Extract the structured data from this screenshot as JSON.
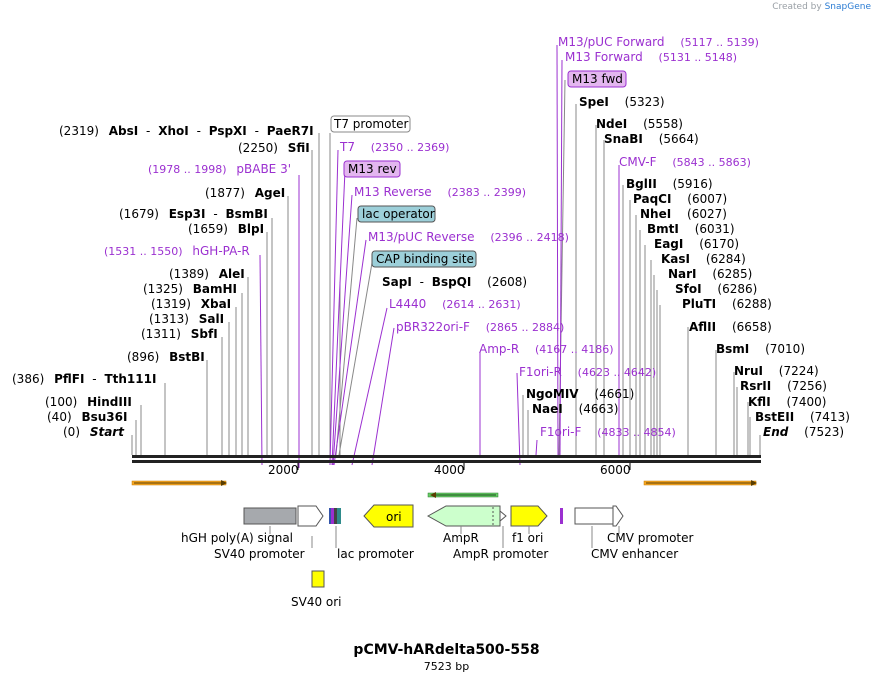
{
  "credit": {
    "prefix": "Created by",
    "brand": "SnapGene"
  },
  "plasmid": {
    "name": "pCMV-hARdelta500-558",
    "length_label": "7523 bp"
  },
  "axis": {
    "ticks": [
      "2000",
      "4000",
      "6000"
    ]
  },
  "sites": [
    {
      "pos": "(2319)",
      "parts": [
        "AbsI",
        "XhoI",
        "PspXI",
        "PaeR7I"
      ]
    },
    {
      "pos": "(2250)",
      "parts": [
        "SfiI"
      ]
    },
    {
      "pos": "(1877)",
      "parts": [
        "AgeI"
      ]
    },
    {
      "pos": "(1679)",
      "parts": [
        "Esp3I",
        "BsmBI"
      ]
    },
    {
      "pos": "(1659)",
      "parts": [
        "BlpI"
      ]
    },
    {
      "pos": "(1389)",
      "parts": [
        "AleI"
      ]
    },
    {
      "pos": "(1325)",
      "parts": [
        "BamHI"
      ]
    },
    {
      "pos": "(1319)",
      "parts": [
        "XbaI"
      ]
    },
    {
      "pos": "(1313)",
      "parts": [
        "SalI"
      ]
    },
    {
      "pos": "(1311)",
      "parts": [
        "SbfI"
      ]
    },
    {
      "pos": "(896)",
      "parts": [
        "BstBI"
      ]
    },
    {
      "pos": "(386)",
      "parts": [
        "PflFI",
        "Tth111I"
      ]
    },
    {
      "pos": "(100)",
      "parts": [
        "HindIII"
      ]
    },
    {
      "pos": "(40)",
      "parts": [
        "Bsu36I"
      ]
    },
    {
      "pos": "(0)",
      "parts": [
        "Start"
      ]
    },
    {
      "pos": "(2608)",
      "parts": [
        "SapI",
        "BspQI"
      ]
    },
    {
      "pos": "(4661)",
      "parts": [
        "NgoMIV"
      ]
    },
    {
      "pos": "(4663)",
      "parts": [
        "NaeI"
      ]
    },
    {
      "pos": "(5323)",
      "parts": [
        "SpeI"
      ]
    },
    {
      "pos": "(5558)",
      "parts": [
        "NdeI"
      ]
    },
    {
      "pos": "(5664)",
      "parts": [
        "SnaBI"
      ]
    },
    {
      "pos": "(5916)",
      "parts": [
        "BglII"
      ]
    },
    {
      "pos": "(6007)",
      "parts": [
        "PaqCI"
      ]
    },
    {
      "pos": "(6027)",
      "parts": [
        "NheI"
      ]
    },
    {
      "pos": "(6031)",
      "parts": [
        "BmtI"
      ]
    },
    {
      "pos": "(6170)",
      "parts": [
        "EagI"
      ]
    },
    {
      "pos": "(6284)",
      "parts": [
        "KasI"
      ]
    },
    {
      "pos": "(6285)",
      "parts": [
        "NarI"
      ]
    },
    {
      "pos": "(6286)",
      "parts": [
        "SfoI"
      ]
    },
    {
      "pos": "(6288)",
      "parts": [
        "PluTI"
      ]
    },
    {
      "pos": "(6658)",
      "parts": [
        "AflII"
      ]
    },
    {
      "pos": "(7010)",
      "parts": [
        "BsmI"
      ]
    },
    {
      "pos": "(7224)",
      "parts": [
        "NruI"
      ]
    },
    {
      "pos": "(7256)",
      "parts": [
        "RsrII"
      ]
    },
    {
      "pos": "(7400)",
      "parts": [
        "KflI"
      ]
    },
    {
      "pos": "(7413)",
      "parts": [
        "BstEII"
      ]
    },
    {
      "pos": "(7523)",
      "parts": [
        "End"
      ]
    }
  ],
  "primers": [
    {
      "name": "M13/pUC Forward",
      "range": "(5117 .. 5139)"
    },
    {
      "name": "M13 Forward",
      "range": "(5131 .. 5148)"
    },
    {
      "name": "M13 fwd",
      "range": ""
    },
    {
      "name": "CMV-F",
      "range": "(5843 .. 5863)"
    },
    {
      "name": "pBABE 3'",
      "range": "(1978 .. 1998)"
    },
    {
      "name": "hGH-PA-R",
      "range": "(1531 .. 1550)"
    },
    {
      "name": "T7",
      "range": "(2350 .. 2369)"
    },
    {
      "name": "M13 rev",
      "range": ""
    },
    {
      "name": "M13 Reverse",
      "range": "(2383 .. 2399)"
    },
    {
      "name": "M13/pUC Reverse",
      "range": "(2396 .. 2418)"
    },
    {
      "name": "L4440",
      "range": "(2614 .. 2631)"
    },
    {
      "name": "pBR322ori-F",
      "range": "(2865 .. 2884)"
    },
    {
      "name": "Amp-R",
      "range": "(4167 .. 4186)"
    },
    {
      "name": "F1ori-R",
      "range": "(4623 .. 4642)"
    },
    {
      "name": "F1ori-F",
      "range": "(4833 .. 4854)"
    }
  ],
  "boxed_features": [
    "T7 promoter",
    "lac operator",
    "CAP binding site"
  ],
  "features": [
    "hGH poly(A) signal",
    "SV40 promoter",
    "lac promoter",
    "ori",
    "AmpR",
    "AmpR promoter",
    "f1 ori",
    "CMV promoter",
    "CMV enhancer",
    "SV40 ori"
  ],
  "colors": {
    "primer": "#9b30d0",
    "orange_arrow": "#f5a623",
    "yellow_feature": "#ffff00",
    "ampr_fill": "#ccffcc",
    "hgh_fill": "#a6a9ad",
    "operator_fill": "#9ccfd9"
  }
}
